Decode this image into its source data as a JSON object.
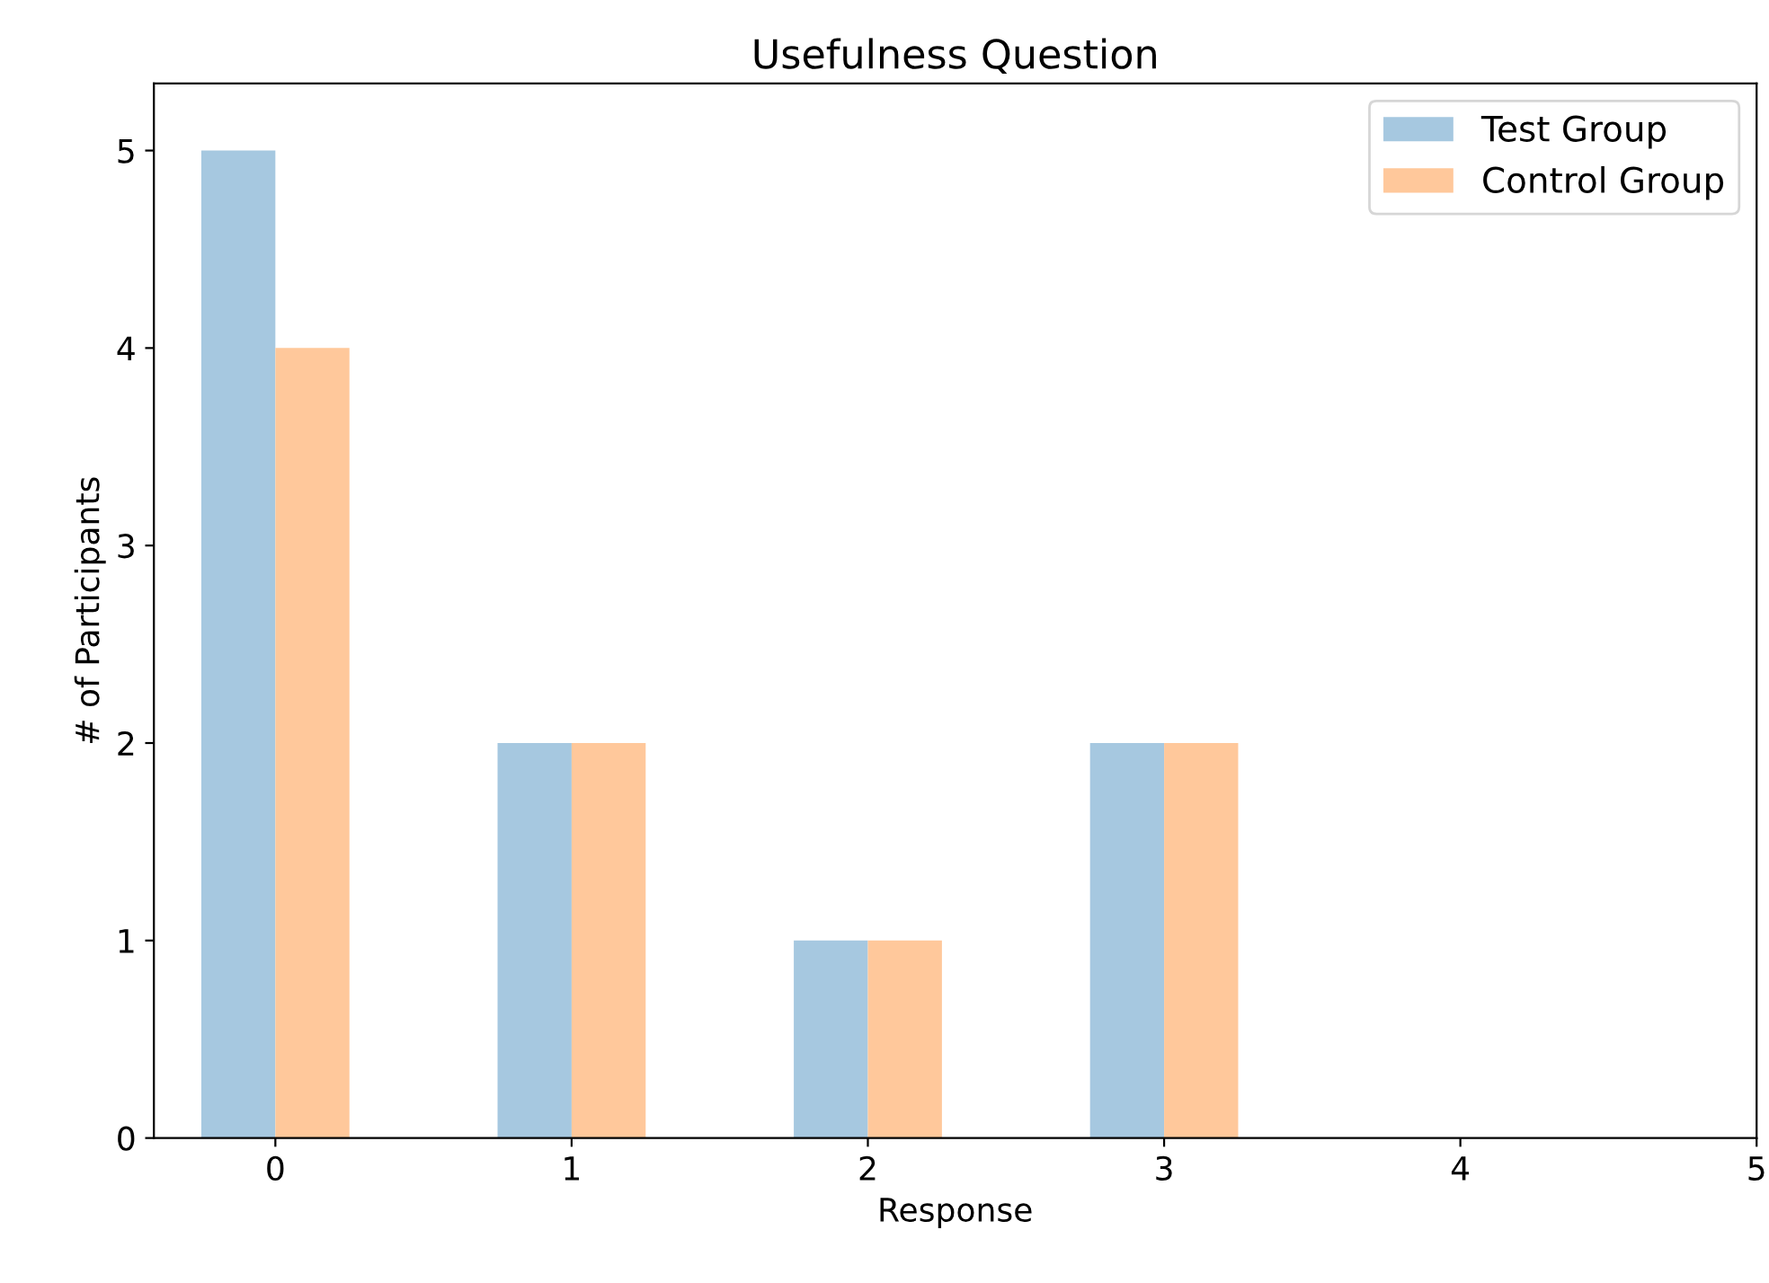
{
  "chart_data": {
    "type": "bar",
    "title": "Usefulness Question",
    "xlabel": "Response",
    "ylabel": "# of Participants",
    "x": [
      0,
      1,
      2,
      3
    ],
    "series": [
      {
        "name": "Test Group",
        "color": "#a6c8e0",
        "values": [
          5,
          2,
          1,
          2
        ]
      },
      {
        "name": "Control Group",
        "color": "#ffc89b",
        "values": [
          4,
          2,
          1,
          2
        ]
      }
    ],
    "xlim": [
      -0.41,
      5
    ],
    "xticks": [
      0,
      1,
      2,
      3,
      4,
      5
    ],
    "ylim": [
      0,
      5.34
    ],
    "yticks": [
      0,
      1,
      2,
      3,
      4,
      5
    ],
    "grid": false,
    "legend": "top right"
  }
}
